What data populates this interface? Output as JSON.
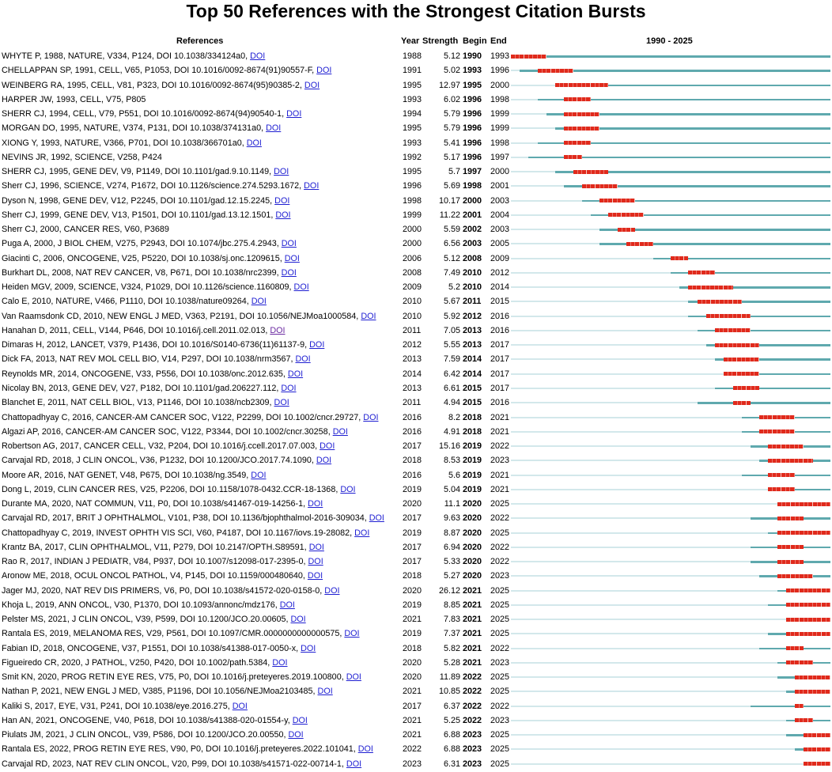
{
  "colors": {
    "pre_publication_line": "#d3e8eb",
    "active_line": "#5fa9ae",
    "burst": "#e02a1c",
    "link": "#1f1fd2",
    "visited_link": "#6b2aa1"
  },
  "header": {
    "references": "References",
    "year": "Year",
    "strength": "Strength",
    "begin": "Begin",
    "end": "End",
    "timeline": "1990 - 2025"
  },
  "chart_data": {
    "type": "table",
    "title": "Top 50 References with the Strongest Citation Bursts",
    "timeline_range": [
      1990,
      2025
    ],
    "columns": [
      "References",
      "Year",
      "Strength",
      "Begin",
      "End",
      "1990 - 2025"
    ],
    "rows": [
      {
        "ref": "WHYTE P, 1988, NATURE, V334, P124, DOI 10.1038/334124a0,",
        "link": "DOI",
        "year": 1988,
        "strength": "5.12",
        "begin": 1990,
        "end": 1993
      },
      {
        "ref": "CHELLAPPAN SP, 1991, CELL, V65, P1053, DOI 10.1016/0092-8674(91)90557-F,",
        "link": "DOI",
        "year": 1991,
        "strength": "5.02",
        "begin": 1993,
        "end": 1996
      },
      {
        "ref": "WEINBERG RA, 1995, CELL, V81, P323, DOI 10.1016/0092-8674(95)90385-2,",
        "link": "DOI",
        "year": 1995,
        "strength": "12.97",
        "begin": 1995,
        "end": 2000
      },
      {
        "ref": "HARPER JW, 1993, CELL, V75, P805",
        "link": "",
        "year": 1993,
        "strength": "6.02",
        "begin": 1996,
        "end": 1998
      },
      {
        "ref": "SHERR CJ, 1994, CELL, V79, P551, DOI 10.1016/0092-8674(94)90540-1,",
        "link": "DOI",
        "year": 1994,
        "strength": "5.79",
        "begin": 1996,
        "end": 1999
      },
      {
        "ref": "MORGAN DO, 1995, NATURE, V374, P131, DOI 10.1038/374131a0,",
        "link": "DOI",
        "year": 1995,
        "strength": "5.79",
        "begin": 1996,
        "end": 1999
      },
      {
        "ref": "XIONG Y, 1993, NATURE, V366, P701, DOI 10.1038/366701a0,",
        "link": "DOI",
        "year": 1993,
        "strength": "5.41",
        "begin": 1996,
        "end": 1998
      },
      {
        "ref": "NEVINS JR, 1992, SCIENCE, V258, P424",
        "link": "",
        "year": 1992,
        "strength": "5.17",
        "begin": 1996,
        "end": 1997
      },
      {
        "ref": "SHERR CJ, 1995, GENE DEV, V9, P1149, DOI 10.1101/gad.9.10.1149,",
        "link": "DOI",
        "year": 1995,
        "strength": "5.7",
        "begin": 1997,
        "end": 2000
      },
      {
        "ref": "Sherr CJ, 1996, SCIENCE, V274, P1672, DOI 10.1126/science.274.5293.1672,",
        "link": "DOI",
        "year": 1996,
        "strength": "5.69",
        "begin": 1998,
        "end": 2001
      },
      {
        "ref": "Dyson N, 1998, GENE DEV, V12, P2245, DOI 10.1101/gad.12.15.2245,",
        "link": "DOI",
        "year": 1998,
        "strength": "10.17",
        "begin": 2000,
        "end": 2003
      },
      {
        "ref": "Sherr CJ, 1999, GENE DEV, V13, P1501, DOI 10.1101/gad.13.12.1501,",
        "link": "DOI",
        "year": 1999,
        "strength": "11.22",
        "begin": 2001,
        "end": 2004
      },
      {
        "ref": "Sherr CJ, 2000, CANCER RES, V60, P3689",
        "link": "",
        "year": 2000,
        "strength": "5.59",
        "begin": 2002,
        "end": 2003
      },
      {
        "ref": "Puga A, 2000, J BIOL CHEM, V275, P2943, DOI 10.1074/jbc.275.4.2943,",
        "link": "DOI",
        "year": 2000,
        "strength": "6.56",
        "begin": 2003,
        "end": 2005
      },
      {
        "ref": "Giacinti C, 2006, ONCOGENE, V25, P5220, DOI 10.1038/sj.onc.1209615,",
        "link": "DOI",
        "year": 2006,
        "strength": "5.12",
        "begin": 2008,
        "end": 2009
      },
      {
        "ref": "Burkhart DL, 2008, NAT REV CANCER, V8, P671, DOI 10.1038/nrc2399,",
        "link": "DOI",
        "year": 2008,
        "strength": "7.49",
        "begin": 2010,
        "end": 2012
      },
      {
        "ref": "Heiden MGV, 2009, SCIENCE, V324, P1029, DOI 10.1126/science.1160809,",
        "link": "DOI",
        "year": 2009,
        "strength": "5.2",
        "begin": 2010,
        "end": 2014
      },
      {
        "ref": "Calo E, 2010, NATURE, V466, P1110, DOI 10.1038/nature09264,",
        "link": "DOI",
        "year": 2010,
        "strength": "5.67",
        "begin": 2011,
        "end": 2015
      },
      {
        "ref": "Van Raamsdonk CD, 2010, NEW ENGL J MED, V363, P2191, DOI 10.1056/NEJMoa1000584,",
        "link": "DOI",
        "year": 2010,
        "strength": "5.92",
        "begin": 2012,
        "end": 2016
      },
      {
        "ref": "Hanahan D, 2011, CELL, V144, P646, DOI 10.1016/j.cell.2011.02.013,",
        "link": "DOI",
        "year": 2011,
        "strength": "7.05",
        "begin": 2013,
        "end": 2016
      },
      {
        "ref": "Dimaras H, 2012, LANCET, V379, P1436, DOI 10.1016/S0140-6736(11)61137-9,",
        "link": "DOI",
        "year": 2012,
        "strength": "5.55",
        "begin": 2013,
        "end": 2017
      },
      {
        "ref": "Dick FA, 2013, NAT REV MOL CELL BIO, V14, P297, DOI 10.1038/nrm3567,",
        "link": "DOI",
        "year": 2013,
        "strength": "7.59",
        "begin": 2014,
        "end": 2017
      },
      {
        "ref": "Reynolds MR, 2014, ONCOGENE, V33, P556, DOI 10.1038/onc.2012.635,",
        "link": "DOI",
        "year": 2014,
        "strength": "6.42",
        "begin": 2014,
        "end": 2017
      },
      {
        "ref": "Nicolay BN, 2013, GENE DEV, V27, P182, DOI 10.1101/gad.206227.112,",
        "link": "DOI",
        "year": 2013,
        "strength": "6.61",
        "begin": 2015,
        "end": 2017
      },
      {
        "ref": "Blanchet E, 2011, NAT CELL BIOL, V13, P1146, DOI 10.1038/ncb2309,",
        "link": "DOI",
        "year": 2011,
        "strength": "4.94",
        "begin": 2015,
        "end": 2016
      },
      {
        "ref": "Chattopadhyay C, 2016, CANCER-AM CANCER SOC, V122, P2299, DOI 10.1002/cncr.29727,",
        "link": "DOI",
        "year": 2016,
        "strength": "8.2",
        "begin": 2018,
        "end": 2021
      },
      {
        "ref": "Algazi AP, 2016, CANCER-AM CANCER SOC, V122, P3344, DOI 10.1002/cncr.30258,",
        "link": "DOI",
        "year": 2016,
        "strength": "4.91",
        "begin": 2018,
        "end": 2021
      },
      {
        "ref": "Robertson AG, 2017, CANCER CELL, V32, P204, DOI 10.1016/j.ccell.2017.07.003,",
        "link": "DOI",
        "year": 2017,
        "strength": "15.16",
        "begin": 2019,
        "end": 2022
      },
      {
        "ref": "Carvajal RD, 2018, J CLIN ONCOL, V36, P1232, DOI 10.1200/JCO.2017.74.1090,",
        "link": "DOI",
        "year": 2018,
        "strength": "8.53",
        "begin": 2019,
        "end": 2023
      },
      {
        "ref": "Moore AR, 2016, NAT GENET, V48, P675, DOI 10.1038/ng.3549,",
        "link": "DOI",
        "year": 2016,
        "strength": "5.6",
        "begin": 2019,
        "end": 2021
      },
      {
        "ref": "Dong L, 2019, CLIN CANCER RES, V25, P2206, DOI 10.1158/1078-0432.CCR-18-1368,",
        "link": "DOI",
        "year": 2019,
        "strength": "5.04",
        "begin": 2019,
        "end": 2021
      },
      {
        "ref": "Durante MA, 2020, NAT COMMUN, V11, P0, DOI 10.1038/s41467-019-14256-1,",
        "link": "DOI",
        "year": 2020,
        "strength": "11.1",
        "begin": 2020,
        "end": 2025
      },
      {
        "ref": "Carvajal RD, 2017, BRIT J OPHTHALMOL, V101, P38, DOI 10.1136/bjophthalmol-2016-309034,",
        "link": "DOI",
        "year": 2017,
        "strength": "9.63",
        "begin": 2020,
        "end": 2022
      },
      {
        "ref": "Chattopadhyay C, 2019, INVEST OPHTH VIS SCI, V60, P4187, DOI 10.1167/iovs.19-28082,",
        "link": "DOI",
        "year": 2019,
        "strength": "8.87",
        "begin": 2020,
        "end": 2025
      },
      {
        "ref": "Krantz BA, 2017, CLIN OPHTHALMOL, V11, P279, DOI 10.2147/OPTH.S89591,",
        "link": "DOI",
        "year": 2017,
        "strength": "6.94",
        "begin": 2020,
        "end": 2022
      },
      {
        "ref": "Rao R, 2017, INDIAN J PEDIATR, V84, P937, DOI 10.1007/s12098-017-2395-0,",
        "link": "DOI",
        "year": 2017,
        "strength": "5.33",
        "begin": 2020,
        "end": 2022
      },
      {
        "ref": "Aronow ME, 2018, OCUL ONCOL PATHOL, V4, P145, DOI 10.1159/000480640,",
        "link": "DOI",
        "year": 2018,
        "strength": "5.27",
        "begin": 2020,
        "end": 2023
      },
      {
        "ref": "Jager MJ, 2020, NAT REV DIS PRIMERS, V6, P0, DOI 10.1038/s41572-020-0158-0,",
        "link": "DOI",
        "year": 2020,
        "strength": "26.12",
        "begin": 2021,
        "end": 2025
      },
      {
        "ref": "Khoja L, 2019, ANN ONCOL, V30, P1370, DOI 10.1093/annonc/mdz176,",
        "link": "DOI",
        "year": 2019,
        "strength": "8.85",
        "begin": 2021,
        "end": 2025
      },
      {
        "ref": "Pelster MS, 2021, J CLIN ONCOL, V39, P599, DOI 10.1200/JCO.20.00605,",
        "link": "DOI",
        "year": 2021,
        "strength": "7.83",
        "begin": 2021,
        "end": 2025
      },
      {
        "ref": "Rantala ES, 2019, MELANOMA RES, V29, P561, DOI 10.1097/CMR.0000000000000575,",
        "link": "DOI",
        "year": 2019,
        "strength": "7.37",
        "begin": 2021,
        "end": 2025
      },
      {
        "ref": "Fabian ID, 2018, ONCOGENE, V37, P1551, DOI 10.1038/s41388-017-0050-x,",
        "link": "DOI",
        "year": 2018,
        "strength": "5.82",
        "begin": 2021,
        "end": 2022
      },
      {
        "ref": "Figueiredo CR, 2020, J PATHOL, V250, P420, DOI 10.1002/path.5384,",
        "link": "DOI",
        "year": 2020,
        "strength": "5.28",
        "begin": 2021,
        "end": 2023
      },
      {
        "ref": "Smit KN, 2020, PROG RETIN EYE RES, V75, P0, DOI 10.1016/j.preteyeres.2019.100800,",
        "link": "DOI",
        "year": 2020,
        "strength": "11.89",
        "begin": 2022,
        "end": 2025
      },
      {
        "ref": "Nathan P, 2021, NEW ENGL J MED, V385, P1196, DOI 10.1056/NEJMoa2103485,",
        "link": "DOI",
        "year": 2021,
        "strength": "10.85",
        "begin": 2022,
        "end": 2025
      },
      {
        "ref": "Kaliki S, 2017, EYE, V31, P241, DOI 10.1038/eye.2016.275,",
        "link": "DOI",
        "year": 2017,
        "strength": "6.37",
        "begin": 2022,
        "end": 2022
      },
      {
        "ref": "Han AN, 2021, ONCOGENE, V40, P618, DOI 10.1038/s41388-020-01554-y,",
        "link": "DOI",
        "year": 2021,
        "strength": "5.25",
        "begin": 2022,
        "end": 2023
      },
      {
        "ref": "Piulats JM, 2021, J CLIN ONCOL, V39, P586, DOI 10.1200/JCO.20.00550,",
        "link": "DOI",
        "year": 2021,
        "strength": "6.88",
        "begin": 2023,
        "end": 2025
      },
      {
        "ref": "Rantala ES, 2022, PROG RETIN EYE RES, V90, P0, DOI 10.1016/j.preteyeres.2022.101041,",
        "link": "DOI",
        "year": 2022,
        "strength": "6.88",
        "begin": 2023,
        "end": 2025
      },
      {
        "ref": "Carvajal RD, 2023, NAT REV CLIN ONCOL, V20, P99, DOI 10.1038/s41571-022-00714-1,",
        "link": "DOI",
        "year": 2023,
        "strength": "6.31",
        "begin": 2023,
        "end": 2025
      }
    ]
  }
}
